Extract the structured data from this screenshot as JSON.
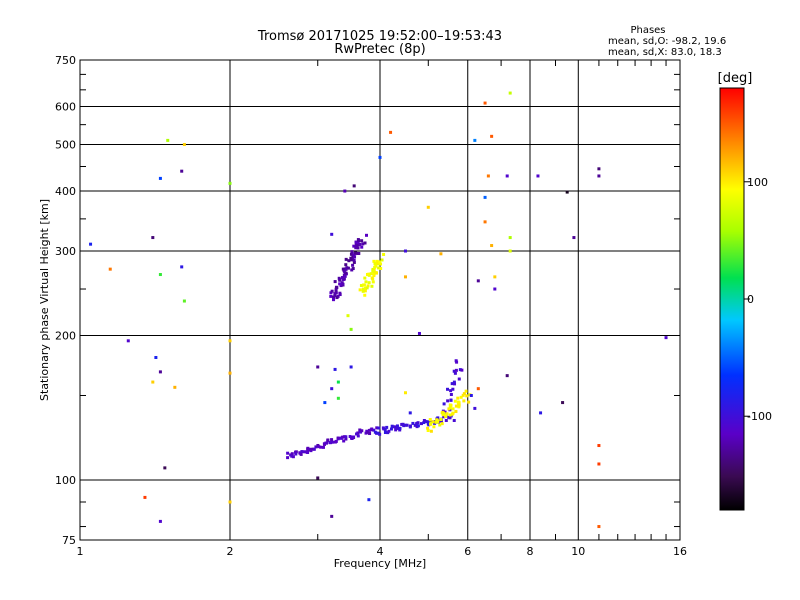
{
  "chart_data": {
    "type": "scatter",
    "title": "Tromsø 20171025 19:52:00–19:53:43",
    "subtitle": "RwPretec (8p)",
    "xlabel": "Frequency [MHz]",
    "ylabel": "Stationary phase Virtual Height [km]",
    "x_scale": "log",
    "y_scale": "log",
    "xlim": [
      1,
      16
    ],
    "ylim": [
      75,
      750
    ],
    "x_ticks": [
      1,
      2,
      4,
      6,
      8,
      10,
      16
    ],
    "y_ticks": [
      75,
      100,
      200,
      300,
      400,
      500,
      600,
      750
    ],
    "grid": true,
    "stats_header": "Phases",
    "stats": [
      "mean, sd,O:  -98.2, 19.6",
      "mean, sd,X:   83.0, 18.3"
    ],
    "colorbar": {
      "label": "[deg]",
      "range": [
        -180,
        180
      ],
      "ticks": [
        100,
        0,
        -100
      ]
    },
    "traces": [
      {
        "x0": 2.6,
        "x1": 3.9,
        "y0": 112,
        "y1": 128,
        "phase": -115,
        "n": 70,
        "spread": 0.012
      },
      {
        "x0": 3.9,
        "x1": 5.6,
        "y0": 126,
        "y1": 135,
        "phase": -100,
        "n": 60,
        "spread": 0.012
      },
      {
        "x0": 5.4,
        "x1": 5.8,
        "y0": 140,
        "y1": 175,
        "phase": -105,
        "n": 22,
        "spread": 0.02
      },
      {
        "x0": 5.0,
        "x1": 6.0,
        "y0": 128,
        "y1": 150,
        "phase": 95,
        "n": 50,
        "spread": 0.018
      },
      {
        "x0": 3.2,
        "x1": 3.7,
        "y0": 238,
        "y1": 320,
        "phase": -125,
        "n": 80,
        "spread": 0.02
      },
      {
        "x0": 3.7,
        "x1": 4.0,
        "y0": 245,
        "y1": 290,
        "phase": 90,
        "n": 45,
        "spread": 0.02
      }
    ],
    "points": [
      {
        "x": 1.05,
        "y": 310,
        "phase": -80
      },
      {
        "x": 1.15,
        "y": 275,
        "phase": 140
      },
      {
        "x": 1.25,
        "y": 195,
        "phase": -110
      },
      {
        "x": 1.4,
        "y": 320,
        "phase": -140
      },
      {
        "x": 1.45,
        "y": 425,
        "phase": -60
      },
      {
        "x": 1.5,
        "y": 510,
        "phase": 60
      },
      {
        "x": 1.6,
        "y": 440,
        "phase": -130
      },
      {
        "x": 1.62,
        "y": 500,
        "phase": 110
      },
      {
        "x": 1.6,
        "y": 278,
        "phase": -90
      },
      {
        "x": 1.62,
        "y": 236,
        "phase": 40
      },
      {
        "x": 1.45,
        "y": 268,
        "phase": 30
      },
      {
        "x": 1.42,
        "y": 180,
        "phase": -80
      },
      {
        "x": 1.45,
        "y": 168,
        "phase": -130
      },
      {
        "x": 1.4,
        "y": 160,
        "phase": 110
      },
      {
        "x": 1.55,
        "y": 156,
        "phase": 120
      },
      {
        "x": 1.48,
        "y": 106,
        "phase": -150
      },
      {
        "x": 1.35,
        "y": 92,
        "phase": 160
      },
      {
        "x": 1.45,
        "y": 82,
        "phase": -110
      },
      {
        "x": 2.0,
        "y": 415,
        "phase": 50
      },
      {
        "x": 2.0,
        "y": 195,
        "phase": 110
      },
      {
        "x": 2.0,
        "y": 167,
        "phase": 120
      },
      {
        "x": 2.0,
        "y": 90,
        "phase": 110
      },
      {
        "x": 3.0,
        "y": 172,
        "phase": -130
      },
      {
        "x": 3.1,
        "y": 145,
        "phase": -60
      },
      {
        "x": 3.25,
        "y": 170,
        "phase": -90
      },
      {
        "x": 3.2,
        "y": 155,
        "phase": -100
      },
      {
        "x": 3.3,
        "y": 160,
        "phase": 20
      },
      {
        "x": 3.3,
        "y": 148,
        "phase": 30
      },
      {
        "x": 3.5,
        "y": 172,
        "phase": -90
      },
      {
        "x": 3.45,
        "y": 220,
        "phase": 80
      },
      {
        "x": 3.5,
        "y": 206,
        "phase": 50
      },
      {
        "x": 3.4,
        "y": 400,
        "phase": -120
      },
      {
        "x": 3.55,
        "y": 410,
        "phase": -140
      },
      {
        "x": 3.2,
        "y": 325,
        "phase": -100
      },
      {
        "x": 3.0,
        "y": 101,
        "phase": -150
      },
      {
        "x": 3.2,
        "y": 84,
        "phase": -130
      },
      {
        "x": 3.8,
        "y": 91,
        "phase": -80
      },
      {
        "x": 4.0,
        "y": 470,
        "phase": -60
      },
      {
        "x": 4.2,
        "y": 530,
        "phase": 150
      },
      {
        "x": 4.5,
        "y": 300,
        "phase": -100
      },
      {
        "x": 4.5,
        "y": 265,
        "phase": 120
      },
      {
        "x": 4.8,
        "y": 202,
        "phase": -110
      },
      {
        "x": 5.0,
        "y": 370,
        "phase": 110
      },
      {
        "x": 5.3,
        "y": 296,
        "phase": 120
      },
      {
        "x": 4.5,
        "y": 152,
        "phase": 100
      },
      {
        "x": 4.6,
        "y": 138,
        "phase": -90
      },
      {
        "x": 6.2,
        "y": 510,
        "phase": -40
      },
      {
        "x": 6.5,
        "y": 610,
        "phase": 150
      },
      {
        "x": 6.7,
        "y": 520,
        "phase": 150
      },
      {
        "x": 6.6,
        "y": 430,
        "phase": 140
      },
      {
        "x": 6.5,
        "y": 388,
        "phase": -50
      },
      {
        "x": 6.5,
        "y": 345,
        "phase": 140
      },
      {
        "x": 6.7,
        "y": 308,
        "phase": 120
      },
      {
        "x": 6.8,
        "y": 265,
        "phase": 110
      },
      {
        "x": 6.3,
        "y": 260,
        "phase": -130
      },
      {
        "x": 6.8,
        "y": 250,
        "phase": -110
      },
      {
        "x": 7.2,
        "y": 430,
        "phase": -110
      },
      {
        "x": 7.3,
        "y": 640,
        "phase": 70
      },
      {
        "x": 7.3,
        "y": 320,
        "phase": 60
      },
      {
        "x": 7.3,
        "y": 300,
        "phase": 80
      },
      {
        "x": 7.2,
        "y": 165,
        "phase": -140
      },
      {
        "x": 6.3,
        "y": 155,
        "phase": 150
      },
      {
        "x": 6.1,
        "y": 150,
        "phase": -90
      },
      {
        "x": 6.2,
        "y": 141,
        "phase": -100
      },
      {
        "x": 8.3,
        "y": 430,
        "phase": -110
      },
      {
        "x": 8.4,
        "y": 138,
        "phase": -90
      },
      {
        "x": 9.5,
        "y": 398,
        "phase": -170
      },
      {
        "x": 9.8,
        "y": 320,
        "phase": -130
      },
      {
        "x": 9.3,
        "y": 145,
        "phase": -150
      },
      {
        "x": 11.0,
        "y": 445,
        "phase": -140
      },
      {
        "x": 11.0,
        "y": 430,
        "phase": -130
      },
      {
        "x": 11.0,
        "y": 118,
        "phase": 160
      },
      {
        "x": 11.0,
        "y": 108,
        "phase": 160
      },
      {
        "x": 11.0,
        "y": 80,
        "phase": 150
      },
      {
        "x": 15.0,
        "y": 198,
        "phase": -110
      }
    ]
  }
}
